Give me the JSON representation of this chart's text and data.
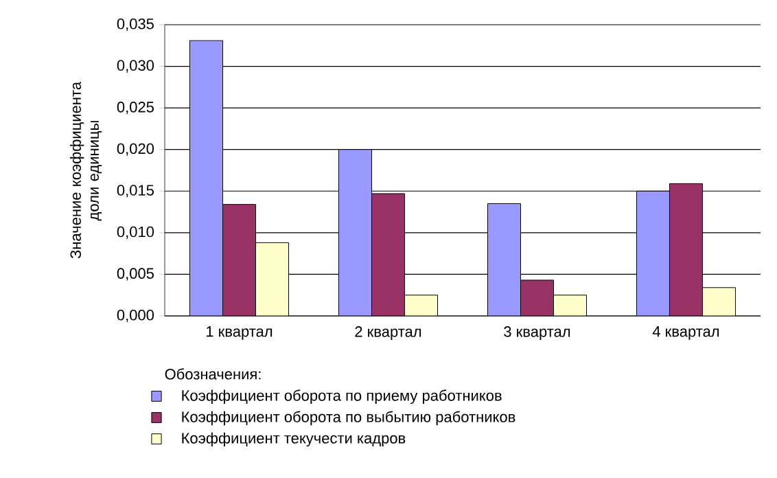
{
  "chart_data": {
    "type": "bar",
    "ylabel": "Значение коэффициента доли единицы",
    "legend_title": "Обозначения:",
    "categories": [
      "1 квартал",
      "2 квартал",
      "3 квартал",
      "4 квартал"
    ],
    "series": [
      {
        "name": "Коэффициент оборота по приему работников",
        "color": "#9999ff",
        "values": [
          0.0331,
          0.02,
          0.0135,
          0.015
        ]
      },
      {
        "name": "Коэффициент оборота по выбытию работников",
        "color": "#993366",
        "values": [
          0.0134,
          0.0147,
          0.0043,
          0.0159
        ]
      },
      {
        "name": "Коэффициент текучести кадров",
        "color": "#ffffcc",
        "values": [
          0.0088,
          0.0025,
          0.0025,
          0.0034
        ]
      }
    ],
    "ylim": [
      0,
      0.035
    ],
    "yticks": [
      {
        "value": 0,
        "label": "0,000"
      },
      {
        "value": 0.005,
        "label": "0,005"
      },
      {
        "value": 0.01,
        "label": "0,010"
      },
      {
        "value": 0.015,
        "label": "0,015"
      },
      {
        "value": 0.02,
        "label": "0,020"
      },
      {
        "value": 0.025,
        "label": "0,025"
      },
      {
        "value": 0.03,
        "label": "0,030"
      },
      {
        "value": 0.035,
        "label": "0,035"
      }
    ],
    "grid": "y",
    "legend": "bottom"
  }
}
